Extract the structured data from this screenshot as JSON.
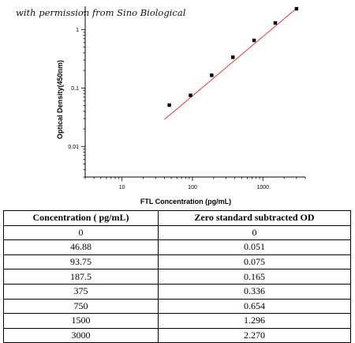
{
  "credit": "with permission from Sino Biological",
  "chart_data": {
    "type": "scatter",
    "xlabel": "FTL Concentration (pg/mL)",
    "ylabel": "Optical Density(450nm)",
    "x_scale": "log",
    "y_scale": "log",
    "xlim": [
      3,
      4000
    ],
    "ylim": [
      0.003,
      2.5
    ],
    "x_ticks": [
      10,
      100,
      1000
    ],
    "x_tick_labels": [
      "10",
      "100",
      "1000"
    ],
    "y_ticks": [
      0.01,
      0.1,
      1
    ],
    "y_tick_labels": [
      "0.01",
      "0.1",
      "1"
    ],
    "points": [
      {
        "x": 46.88,
        "y": 0.051
      },
      {
        "x": 93.75,
        "y": 0.075
      },
      {
        "x": 187.5,
        "y": 0.165
      },
      {
        "x": 375,
        "y": 0.336
      },
      {
        "x": 750,
        "y": 0.654
      },
      {
        "x": 1500,
        "y": 1.296
      },
      {
        "x": 3000,
        "y": 2.27
      }
    ],
    "fit_line": {
      "color": "#e8332f",
      "x": [
        40,
        3000
      ],
      "y": [
        0.029,
        2.3
      ]
    },
    "marker_color": "#000000",
    "grid": false
  },
  "table": {
    "headers": [
      "Concentration ( pg/mL)",
      "Zero standard subtracted OD"
    ],
    "rows": [
      [
        "0",
        "0"
      ],
      [
        "46.88",
        "0.051"
      ],
      [
        "93.75",
        "0.075"
      ],
      [
        "187.5",
        "0.165"
      ],
      [
        "375",
        "0.336"
      ],
      [
        "750",
        "0.654"
      ],
      [
        "1500",
        "1.296"
      ],
      [
        "3000",
        "2.270"
      ]
    ]
  }
}
